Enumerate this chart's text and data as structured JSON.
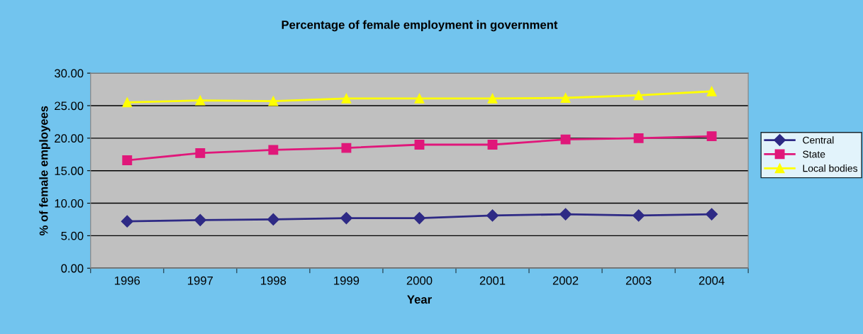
{
  "chart_data": {
    "type": "line",
    "title": "Percentage of female employment in government",
    "xlabel": "Year",
    "ylabel": "% of female employees",
    "categories": [
      "1996",
      "1997",
      "1998",
      "1999",
      "2000",
      "2001",
      "2002",
      "2003",
      "2004"
    ],
    "series": [
      {
        "name": "Central",
        "color": "#2e2a85",
        "marker": "diamond",
        "values": [
          7.2,
          7.4,
          7.5,
          7.7,
          7.7,
          8.1,
          8.3,
          8.1,
          8.3
        ]
      },
      {
        "name": "State",
        "color": "#e0177a",
        "marker": "square",
        "values": [
          16.6,
          17.7,
          18.2,
          18.5,
          19.0,
          19.0,
          19.8,
          20.0,
          20.3
        ]
      },
      {
        "name": "Local bodies",
        "color": "#ffff00",
        "marker": "triangle",
        "values": [
          25.5,
          25.8,
          25.7,
          26.1,
          26.1,
          26.1,
          26.2,
          26.6,
          27.2
        ]
      }
    ],
    "ylim": [
      0,
      30
    ],
    "yticks": [
      {
        "value": 0,
        "label": "0.00"
      },
      {
        "value": 5,
        "label": "5.00"
      },
      {
        "value": 10,
        "label": "10.00"
      },
      {
        "value": 15,
        "label": "15.00"
      },
      {
        "value": 20,
        "label": "20.00"
      },
      {
        "value": 25,
        "label": "25.00"
      },
      {
        "value": 30,
        "label": "30.00"
      }
    ],
    "grid": "y",
    "legend": "right",
    "line_style": "solid"
  }
}
